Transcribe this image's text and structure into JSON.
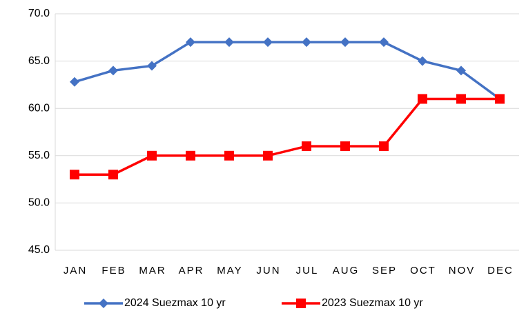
{
  "chart_data": {
    "type": "line",
    "categories": [
      "JAN",
      "FEB",
      "MAR",
      "APR",
      "MAY",
      "JUN",
      "JUL",
      "AUG",
      "SEP",
      "OCT",
      "NOV",
      "DEC"
    ],
    "series": [
      {
        "name": "2024 Suezmax 10 yr",
        "color": "#4472c4",
        "marker": "diamond",
        "values": [
          62.8,
          64,
          64.5,
          67,
          67,
          67,
          67,
          67,
          67,
          65,
          64,
          61
        ]
      },
      {
        "name": "2023 Suezmax 10 yr",
        "color": "#ff0000",
        "marker": "square",
        "values": [
          53,
          53,
          55,
          55,
          55,
          55,
          56,
          56,
          56,
          61,
          61,
          61
        ]
      }
    ],
    "ylim": [
      45,
      70
    ],
    "yticks": [
      {
        "value": 45,
        "label": "45.0"
      },
      {
        "value": 50,
        "label": "50.0"
      },
      {
        "value": 55,
        "label": "55.0"
      },
      {
        "value": 60,
        "label": "60.0"
      },
      {
        "value": 65,
        "label": "65.0"
      },
      {
        "value": 70,
        "label": "70.0"
      }
    ],
    "grid": true,
    "legend": "bottom"
  }
}
